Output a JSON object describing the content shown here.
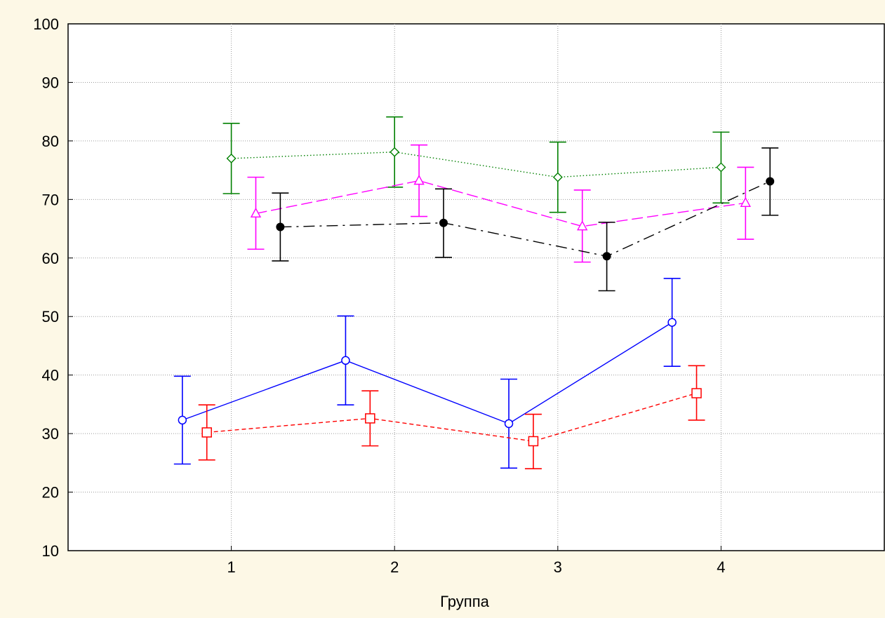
{
  "chart_data": {
    "type": "line",
    "title": "",
    "xlabel": "Группа",
    "ylabel": "",
    "x_ticks": [
      "1",
      "2",
      "3",
      "4"
    ],
    "y_ticks": [
      "10",
      "20",
      "30",
      "40",
      "50",
      "60",
      "70",
      "80",
      "90",
      "100"
    ],
    "xlim": [
      0,
      5
    ],
    "ylim": [
      10,
      100
    ],
    "grid": true,
    "error_bars": true,
    "series": [
      {
        "color": "#0000ff",
        "marker": "circle-open",
        "line_style": "solid",
        "x": [
          0.7,
          1.7,
          2.7,
          3.7
        ],
        "y": [
          32.3,
          42.5,
          31.7,
          49.0
        ],
        "err_low": [
          24.8,
          34.9,
          24.1,
          41.5
        ],
        "err_high": [
          39.8,
          50.1,
          39.3,
          56.5
        ]
      },
      {
        "color": "#ff0000",
        "marker": "square-open",
        "line_style": "dashed",
        "x": [
          0.85,
          1.85,
          2.85,
          3.85
        ],
        "y": [
          30.2,
          32.6,
          28.7,
          36.9
        ],
        "err_low": [
          25.5,
          27.9,
          24.0,
          32.3
        ],
        "err_high": [
          34.9,
          37.3,
          33.3,
          41.6
        ]
      },
      {
        "color": "#008000",
        "marker": "diamond-open",
        "line_style": "dotted",
        "x": [
          1.0,
          2.0,
          3.0,
          4.0
        ],
        "y": [
          77.0,
          78.1,
          73.8,
          75.5
        ],
        "err_low": [
          71.0,
          72.1,
          67.8,
          69.4
        ],
        "err_high": [
          83.0,
          84.1,
          79.8,
          81.5
        ]
      },
      {
        "color": "#ff00ff",
        "marker": "triangle-open",
        "line_style": "longdash",
        "x": [
          1.15,
          2.15,
          3.15,
          4.15
        ],
        "y": [
          67.6,
          73.2,
          65.4,
          69.4
        ],
        "err_low": [
          61.5,
          67.1,
          59.3,
          63.2
        ],
        "err_high": [
          73.8,
          79.3,
          71.6,
          75.5
        ]
      },
      {
        "color": "#000000",
        "marker": "circle-filled",
        "line_style": "dashdot",
        "x": [
          1.3,
          2.3,
          3.3,
          4.3
        ],
        "y": [
          65.3,
          66.0,
          60.3,
          73.1
        ],
        "err_low": [
          59.5,
          60.1,
          54.4,
          67.3
        ],
        "err_high": [
          71.1,
          71.8,
          66.1,
          78.8
        ]
      }
    ]
  }
}
